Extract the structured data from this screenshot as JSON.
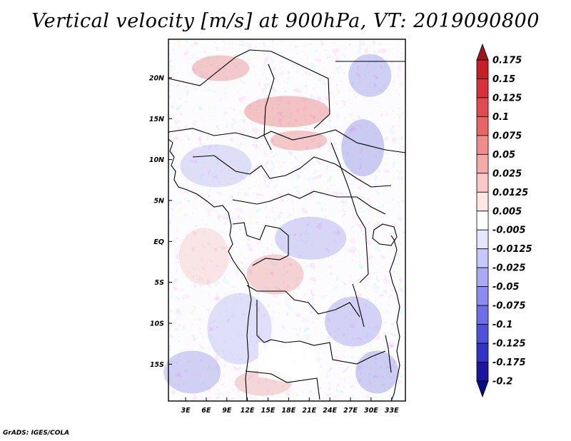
{
  "chart_data": {
    "type": "heatmap",
    "title": "Vertical velocity [m/s] at 900hPa, VT: 2019090800",
    "variable": "Vertical velocity",
    "units": "m/s",
    "level": "900hPa",
    "valid_time": "2019090800",
    "x_ticks": [
      {
        "value": 3,
        "label": "3E"
      },
      {
        "value": 6,
        "label": "6E"
      },
      {
        "value": 9,
        "label": "9E"
      },
      {
        "value": 12,
        "label": "12E"
      },
      {
        "value": 15,
        "label": "15E"
      },
      {
        "value": 18,
        "label": "18E"
      },
      {
        "value": 21,
        "label": "21E"
      },
      {
        "value": 24,
        "label": "24E"
      },
      {
        "value": 27,
        "label": "27E"
      },
      {
        "value": 30,
        "label": "30E"
      },
      {
        "value": 33,
        "label": "33E"
      }
    ],
    "y_ticks": [
      {
        "value": 20,
        "label": "20N"
      },
      {
        "value": 15,
        "label": "15N"
      },
      {
        "value": 10,
        "label": "10N"
      },
      {
        "value": 5,
        "label": "5N"
      },
      {
        "value": 0,
        "label": "EQ"
      },
      {
        "value": -5,
        "label": "5S"
      },
      {
        "value": -10,
        "label": "10S"
      },
      {
        "value": -15,
        "label": "15S"
      }
    ],
    "xlim": [
      0.5,
      35
    ],
    "ylim": [
      -19.5,
      24.7
    ],
    "colorbar": {
      "levels": [
        "0.175",
        "0.15",
        "0.125",
        "0.1",
        "0.075",
        "0.05",
        "0.025",
        "0.0125",
        "0.005",
        "-0.005",
        "-0.0125",
        "-0.025",
        "-0.05",
        "-0.075",
        "-0.1",
        "-0.125",
        "-0.175",
        "-0.2"
      ],
      "colors": [
        "#a0141e",
        "#c81e28",
        "#d7323c",
        "#e14b50",
        "#e96464",
        "#f08c8c",
        "#f5aaaa",
        "#fac8c8",
        "#fde6e6",
        "#ffffff",
        "#e6e6ff",
        "#c8c8ff",
        "#aaaaf5",
        "#8c8cf0",
        "#6e6ee6",
        "#5050dc",
        "#3232c8",
        "#1e14a0",
        "#0a0a82"
      ]
    }
  },
  "footer": {
    "credit": "GrADS: IGES/COLA"
  }
}
